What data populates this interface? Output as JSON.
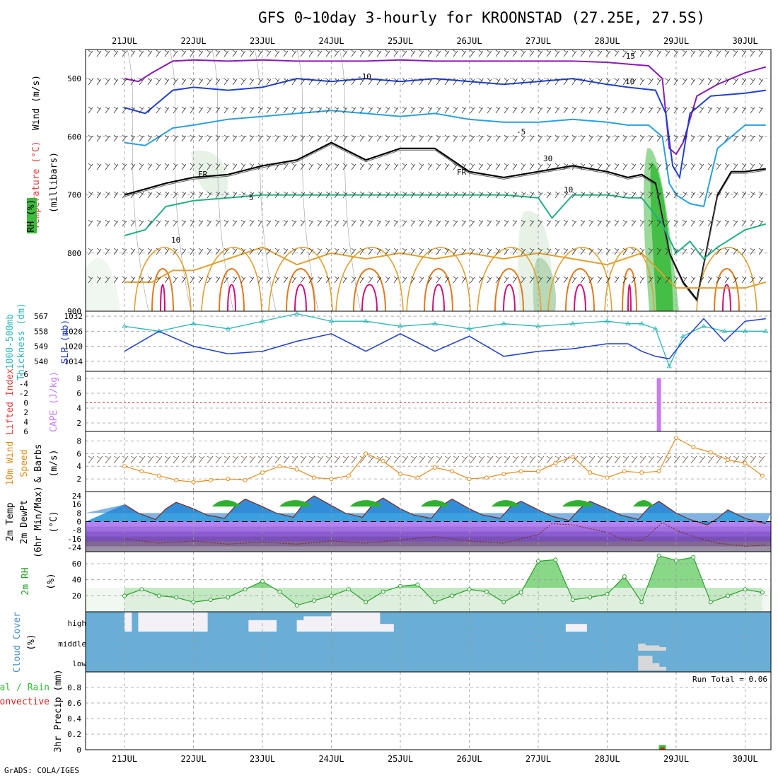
{
  "title": "GFS 0~10day 3-hourly for KROONSTAD (27.25E, 27.5S)",
  "footer": "GrADS: COLA/IGES",
  "colors": {
    "cloud_bg": "#6aaed6",
    "cloud_fill": "#f3f0f6",
    "slp": "#1f3fd0",
    "thickness": "#2bb7b7",
    "cape": "#c77cf2",
    "lifted": "#e04040",
    "wind10": "#e38b1a",
    "rh": "#2aa02a",
    "precip_conv": "#e02020",
    "precip_total": "#30c030"
  },
  "chart_data": [
    {
      "type": "line",
      "panel": "upper-air",
      "xlabels": [
        "21JUL",
        "22JUL",
        "23JUL",
        "24JUL",
        "25JUL",
        "26JUL",
        "27JUL",
        "28JUL",
        "29JUL",
        "30JUL"
      ],
      "ylabel_parts": [
        "Wind (m/s)",
        "Temperature (°C)",
        "RH (%)",
        "(millibars)"
      ],
      "yticks": [
        "500",
        "600",
        "700",
        "800",
        "900"
      ],
      "ylim": [
        450,
        900
      ],
      "contour_labels": [
        "-15",
        "-10",
        "10",
        "-5",
        "FR",
        "5",
        "10",
        "30",
        "10",
        "FR"
      ],
      "series": [
        {
          "name": "-15",
          "x": [
            0,
            0.2,
            0.4,
            0.7,
            1,
            1.5,
            2,
            2.5,
            3,
            3.5,
            4,
            4.5,
            5,
            5.5,
            6,
            6.5,
            7,
            7.3,
            7.6,
            7.8,
            7.9,
            8.0,
            8.1,
            8.3,
            8.6,
            9,
            9.3
          ],
          "values": [
            500,
            505,
            490,
            470,
            468,
            470,
            468,
            470,
            470,
            470,
            468,
            470,
            470,
            470,
            470,
            470,
            472,
            475,
            478,
            500,
            620,
            630,
            610,
            530,
            510,
            490,
            480
          ]
        },
        {
          "name": "-10",
          "x": [
            0,
            0.3,
            0.7,
            1,
            1.5,
            2,
            2.5,
            3,
            3.5,
            4,
            4.5,
            5,
            5.5,
            6,
            6.5,
            7,
            7.3,
            7.7,
            7.85,
            7.95,
            8.05,
            8.2,
            8.5,
            9,
            9.3
          ],
          "values": [
            550,
            560,
            520,
            515,
            520,
            515,
            500,
            505,
            500,
            505,
            500,
            505,
            510,
            505,
            500,
            510,
            515,
            520,
            560,
            650,
            670,
            560,
            530,
            525,
            520
          ]
        },
        {
          "name": "-5",
          "x": [
            0,
            0.3,
            0.7,
            1,
            1.5,
            2,
            2.5,
            3,
            3.5,
            4,
            4.5,
            5,
            5.5,
            6,
            6.5,
            7,
            7.3,
            7.6,
            7.8,
            7.9,
            8.0,
            8.2,
            8.4,
            8.6,
            9,
            9.3
          ],
          "values": [
            610,
            615,
            585,
            580,
            570,
            565,
            560,
            555,
            560,
            565,
            560,
            570,
            575,
            575,
            570,
            575,
            580,
            580,
            600,
            680,
            700,
            715,
            720,
            620,
            580,
            580
          ]
        },
        {
          "name": "FR",
          "x": [
            0,
            0.3,
            0.6,
            1,
            1.5,
            2,
            2.5,
            3,
            3.5,
            4,
            4.5,
            5,
            5.5,
            6,
            6.5,
            7,
            7.3,
            7.5,
            7.7,
            7.9,
            8.1,
            8.3,
            8.6,
            8.8,
            9,
            9.3
          ],
          "values": [
            700,
            690,
            680,
            670,
            665,
            650,
            640,
            610,
            640,
            620,
            620,
            660,
            670,
            660,
            650,
            660,
            670,
            665,
            680,
            800,
            850,
            880,
            700,
            660,
            660,
            655
          ]
        },
        {
          "name": "5",
          "x": [
            0,
            0.3,
            0.6,
            1,
            1.5,
            2,
            2.5,
            3,
            3.5,
            4,
            4.5,
            5,
            5.5,
            6,
            6.2,
            6.5,
            6.8,
            7,
            7.3,
            7.5,
            7.8,
            8.0,
            8.2,
            8.4,
            8.6,
            9,
            9.3
          ],
          "values": [
            770,
            760,
            720,
            710,
            705,
            700,
            700,
            700,
            700,
            700,
            700,
            700,
            700,
            705,
            740,
            700,
            700,
            700,
            705,
            705,
            750,
            800,
            780,
            810,
            790,
            760,
            750
          ]
        },
        {
          "name": "10",
          "x": [
            0,
            0.4,
            0.7,
            1,
            1.5,
            2,
            2.5,
            3,
            3.5,
            4,
            4.5,
            5,
            5.5,
            6,
            6.5,
            7,
            7.5,
            8,
            8.5,
            9,
            9.3
          ],
          "values": [
            850,
            850,
            830,
            830,
            810,
            790,
            820,
            800,
            810,
            800,
            810,
            800,
            810,
            800,
            810,
            820,
            800,
            860,
            860,
            860,
            850
          ]
        }
      ]
    },
    {
      "type": "line",
      "panel": "slp-thickness",
      "ylabel_parts": [
        "1000-500mb",
        "Thickness (dm)",
        "SLP (mb)"
      ],
      "left_ticks": [
        "567",
        "558",
        "549",
        "540"
      ],
      "right_ticks": [
        "1032",
        "1026",
        "1020",
        "1014"
      ],
      "ylim": [
        1010,
        1034
      ],
      "series": [
        {
          "name": "SLP (mb)",
          "x": [
            0,
            0.5,
            1,
            1.5,
            2,
            2.5,
            3,
            3.5,
            4,
            4.5,
            5,
            5.5,
            6,
            6.5,
            7,
            7.3,
            7.5,
            7.7,
            7.9,
            8.1,
            8.4,
            8.7,
            9,
            9.3
          ],
          "values": [
            1018,
            1026,
            1020,
            1017,
            1018,
            1022,
            1025,
            1018,
            1025,
            1018,
            1024,
            1016,
            1018,
            1019,
            1021,
            1021,
            1018,
            1016,
            1015,
            1022,
            1031,
            1022,
            1030,
            1031
          ]
        },
        {
          "name": "1000-500mb Thickness (dm)",
          "x": [
            0,
            0.5,
            1,
            1.5,
            2,
            2.5,
            3,
            3.5,
            4,
            4.5,
            5,
            5.5,
            6,
            6.5,
            7,
            7.3,
            7.5,
            7.7,
            7.9,
            8.1,
            8.4,
            8.7,
            9,
            9.3
          ],
          "values": [
            1028,
            1026,
            1029,
            1027,
            1030,
            1033,
            1030,
            1030,
            1028,
            1029,
            1027,
            1029,
            1028,
            1029,
            1030,
            1029,
            1029,
            1027,
            1012,
            1024,
            1028,
            1026,
            1026,
            1026
          ]
        }
      ]
    },
    {
      "type": "bar",
      "panel": "cape-li",
      "ylabel_parts": [
        "Lifted Index",
        "CAPE (J/kg)"
      ],
      "left_ticks": [
        "-6",
        "-4",
        "-2",
        "0",
        "2",
        "4",
        "6"
      ],
      "right_ticks": [
        "8",
        "6",
        "4",
        "2"
      ],
      "lifted_index_zero_line": true,
      "series": [
        {
          "name": "CAPE (J/kg)",
          "x": [
            7.75
          ],
          "values": [
            9
          ]
        }
      ]
    },
    {
      "type": "line",
      "panel": "wind10",
      "ylabel_parts": [
        "10m Wind",
        "Speed",
        "& Barbs",
        "(m/s)"
      ],
      "yticks": [
        "8",
        "6",
        "4",
        "2"
      ],
      "ylim": [
        0,
        9.5
      ],
      "series": [
        {
          "name": "10m Wind Speed",
          "x": [
            0,
            0.25,
            0.5,
            0.75,
            1,
            1.25,
            1.5,
            1.75,
            2,
            2.25,
            2.5,
            2.75,
            3,
            3.25,
            3.5,
            3.75,
            4,
            4.25,
            4.5,
            4.75,
            5,
            5.25,
            5.5,
            5.75,
            6,
            6.25,
            6.5,
            6.75,
            7,
            7.25,
            7.5,
            7.75,
            8,
            8.25,
            8.5,
            8.75,
            9,
            9.25
          ],
          "values": [
            4,
            3.2,
            2.5,
            1.8,
            1.5,
            1.8,
            2,
            1.8,
            3,
            4,
            3.5,
            2.2,
            2,
            2.5,
            6,
            4.8,
            2.8,
            2.2,
            3.8,
            3.2,
            2.0,
            2.2,
            2.8,
            3.2,
            3.2,
            4.5,
            5.5,
            3.0,
            2.2,
            3.2,
            3.0,
            3.2,
            8.5,
            7.0,
            6.2,
            5.0,
            4.5,
            2.5
          ]
        }
      ]
    },
    {
      "type": "area",
      "panel": "temp",
      "ylabel_parts": [
        "2m Temp",
        "2m DewPt",
        "(6hr Min/Max)",
        "(°C)"
      ],
      "yticks": [
        "24",
        "16",
        "8",
        "0",
        "-8",
        "-16",
        "-24"
      ],
      "ylim": [
        -28,
        28
      ],
      "series": [
        {
          "name": "2m Temp",
          "x": [
            0,
            0.2,
            0.45,
            0.6,
            0.75,
            1,
            1.2,
            1.45,
            1.6,
            1.75,
            2,
            2.2,
            2.45,
            2.6,
            2.75,
            3,
            3.2,
            3.45,
            3.6,
            3.75,
            4,
            4.2,
            4.45,
            4.6,
            4.75,
            5,
            5.2,
            5.45,
            5.6,
            5.75,
            6,
            6.2,
            6.45,
            6.6,
            6.75,
            7,
            7.2,
            7.45,
            7.6,
            7.75,
            8,
            8.2,
            8.45,
            8.6,
            8.75,
            9,
            9.3
          ],
          "values": [
            16,
            8,
            2,
            12,
            18,
            12,
            6,
            3,
            14,
            21,
            14,
            8,
            4,
            17,
            24,
            15,
            8,
            4,
            16,
            22,
            12,
            6,
            3,
            15,
            21,
            12,
            6,
            3,
            14,
            19,
            11,
            5,
            1,
            12,
            19,
            12,
            6,
            2,
            13,
            19,
            8,
            2,
            -3,
            3,
            11,
            3,
            -2
          ]
        },
        {
          "name": "2m DewPt",
          "x": [
            0,
            0.5,
            1,
            1.5,
            2,
            2.5,
            3,
            3.5,
            4,
            4.5,
            5,
            5.5,
            6,
            6.2,
            6.5,
            7,
            7.2,
            7.5,
            7.8,
            8.0,
            8.3,
            8.6,
            9,
            9.3
          ],
          "values": [
            -16,
            -20,
            -18,
            -21,
            -19,
            -21,
            -18,
            -20,
            -17,
            -14,
            -18,
            -20,
            -12,
            -2,
            -3,
            -10,
            -16,
            -18,
            -1,
            -8,
            -15,
            -20,
            -23,
            -22
          ]
        }
      ]
    },
    {
      "type": "area",
      "panel": "rh",
      "ylabel_parts": [
        "2m RH",
        "(%)"
      ],
      "yticks": [
        "60",
        "40",
        "20"
      ],
      "ylim": [
        0,
        75
      ],
      "series": [
        {
          "name": "2m RH",
          "x": [
            0,
            0.25,
            0.5,
            0.75,
            1,
            1.25,
            1.5,
            1.75,
            2,
            2.25,
            2.5,
            2.75,
            3,
            3.25,
            3.5,
            3.75,
            4,
            4.25,
            4.5,
            4.75,
            5,
            5.25,
            5.5,
            5.75,
            6,
            6.25,
            6.5,
            6.75,
            7,
            7.25,
            7.5,
            7.75,
            8,
            8.25,
            8.5,
            8.75,
            9,
            9.25
          ],
          "values": [
            20,
            28,
            20,
            18,
            12,
            15,
            18,
            28,
            38,
            25,
            8,
            14,
            20,
            28,
            12,
            25,
            32,
            34,
            12,
            20,
            28,
            25,
            12,
            24,
            63,
            65,
            15,
            18,
            22,
            44,
            12,
            70,
            64,
            68,
            12,
            20,
            28,
            24
          ]
        }
      ]
    },
    {
      "type": "area",
      "panel": "cloud",
      "ylabel_parts": [
        "Cloud Cover",
        "(%)"
      ],
      "levels": [
        "high",
        "middle",
        "low"
      ],
      "series": [
        {
          "name": "high",
          "x": [
            0.05,
            0.25,
            0.35,
            0.45,
            0.55,
            0.65,
            0.75,
            0.85,
            0.95,
            1.05,
            1.15,
            1.85,
            1.95,
            2.05,
            2.15,
            2.55,
            2.65,
            2.75,
            2.85,
            2.95,
            3.05,
            3.15,
            3.25,
            3.35,
            3.45,
            3.55,
            3.65,
            3.75,
            3.85,
            6.45,
            6.55,
            6.65
          ],
          "values": [
            100,
            100,
            100,
            100,
            100,
            100,
            100,
            100,
            100,
            100,
            100,
            60,
            60,
            60,
            60,
            60,
            80,
            80,
            80,
            80,
            100,
            100,
            100,
            100,
            100,
            100,
            100,
            40,
            40,
            40,
            40,
            40
          ]
        },
        {
          "name": "middle",
          "x": [
            7.5,
            7.6,
            7.7,
            7.8
          ],
          "values": [
            40,
            30,
            30,
            20
          ]
        },
        {
          "name": "low",
          "x": [
            7.5,
            7.6,
            7.7,
            7.8
          ],
          "values": [
            80,
            80,
            40,
            20
          ]
        }
      ]
    },
    {
      "type": "bar",
      "panel": "precip",
      "ylabel_parts": [
        "Total / Rain",
        "Convective",
        "3hr Precip (mm)"
      ],
      "yticks": [
        "0.8",
        "0.6",
        "0.4",
        "0.2",
        "0"
      ],
      "ylim": [
        0,
        1
      ],
      "run_total": "Run Total = 0.06",
      "series": [
        {
          "name": "Total / Rain",
          "x": [
            7.8
          ],
          "values": [
            0.06
          ]
        },
        {
          "name": "Convective",
          "x": [
            7.8
          ],
          "values": [
            0.03
          ]
        }
      ]
    }
  ]
}
